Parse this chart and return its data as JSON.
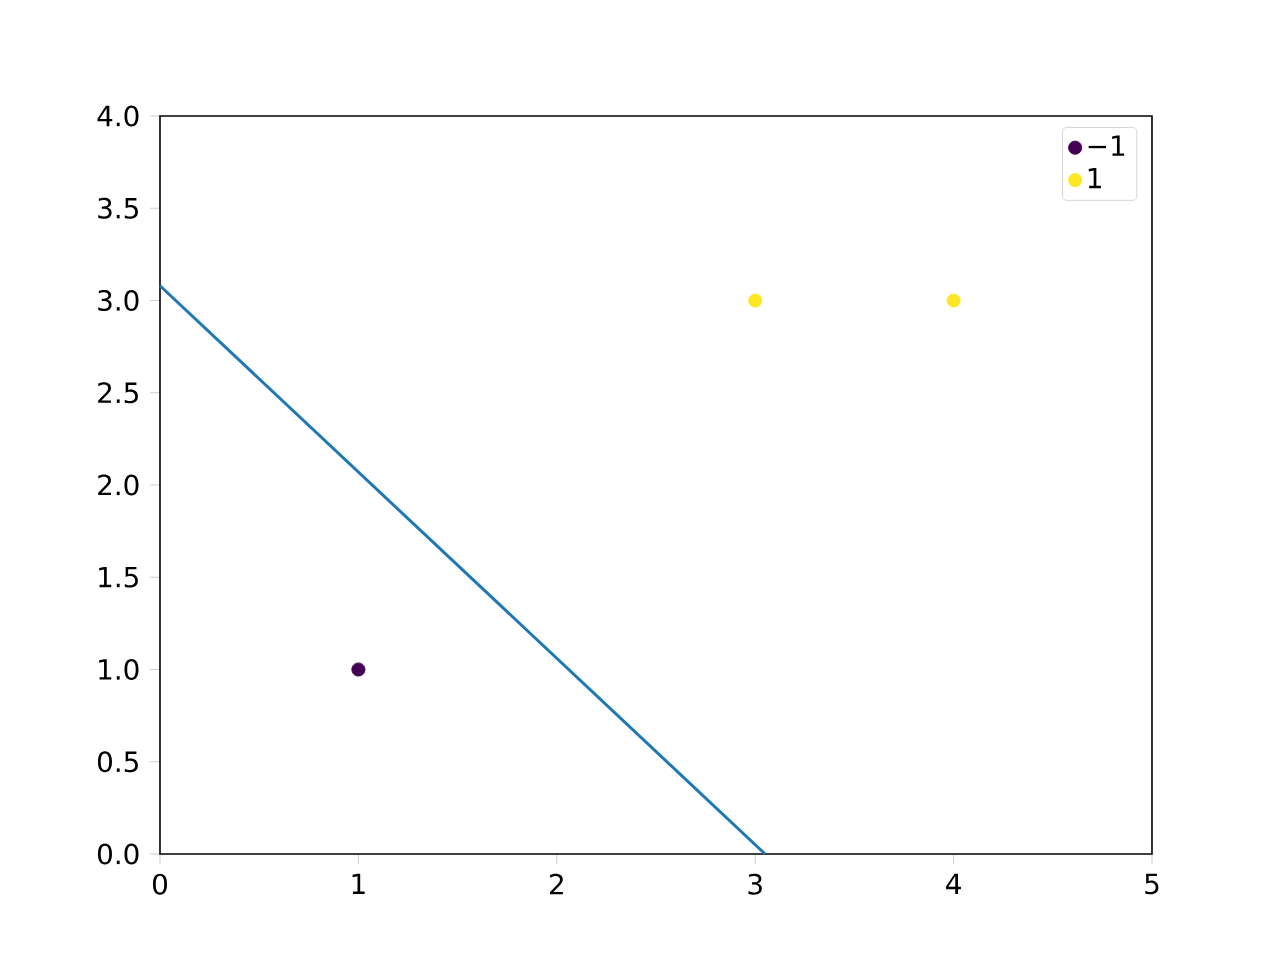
{
  "chart_data": {
    "type": "scatter",
    "series": [
      {
        "name": "−1",
        "color": "#440154",
        "x": [
          1
        ],
        "values": [
          1
        ],
        "marker": "circle"
      },
      {
        "name": "1",
        "color": "#fde725",
        "x": [
          3,
          4
        ],
        "values": [
          3,
          3
        ],
        "marker": "circle"
      },
      {
        "type": "line",
        "color": "#1f77b4",
        "x": [
          0,
          3.05
        ],
        "values": [
          3.08,
          0
        ],
        "line_style": "solid"
      }
    ],
    "xlim": [
      0,
      5
    ],
    "ylim": [
      0,
      4
    ],
    "xticks": [
      0,
      1,
      2,
      3,
      4,
      5
    ],
    "yticks": [
      {
        "value": 0,
        "label": "0.0"
      },
      {
        "value": 0.5,
        "label": "0.5"
      },
      {
        "value": 1,
        "label": "1.0"
      },
      {
        "value": 1.5,
        "label": "1.5"
      },
      {
        "value": 2,
        "label": "2.0"
      },
      {
        "value": 2.5,
        "label": "2.5"
      },
      {
        "value": 3,
        "label": "3.0"
      },
      {
        "value": 3.5,
        "label": "3.5"
      },
      {
        "value": 4,
        "label": "4.0"
      }
    ],
    "legend": "top right"
  }
}
